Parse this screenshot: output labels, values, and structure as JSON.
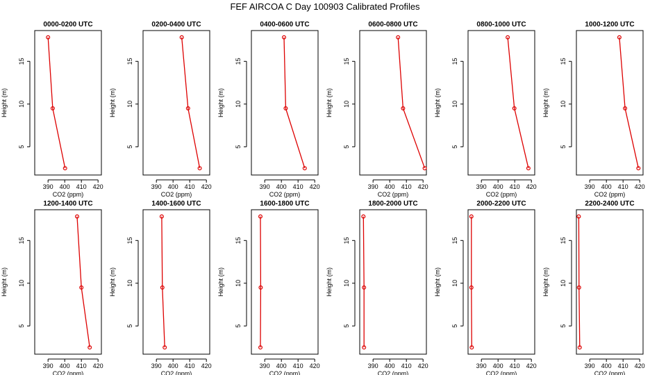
{
  "title": "FEF AIRCOA C  Day 100903  Calibrated Profiles",
  "colors": {
    "series": "#dd0000",
    "frame": "#000000"
  },
  "chart_data": {
    "type": "line",
    "xlabel": "CO2 (ppm)",
    "ylabel": "Height (m)",
    "xlim": [
      382,
      422
    ],
    "ylim": [
      1.7,
      18.6
    ],
    "xticks": [
      390,
      400,
      410,
      420
    ],
    "yticks": [
      5,
      10,
      15
    ],
    "heights": [
      17.8,
      9.5,
      2.5
    ],
    "panels": [
      {
        "title": "0000-0200 UTC",
        "co2": [
          390.0,
          392.8,
          400.2
        ]
      },
      {
        "title": "0200-0400 UTC",
        "co2": [
          405.2,
          409.0,
          416.0
        ]
      },
      {
        "title": "0400-0600 UTC",
        "co2": [
          401.6,
          402.6,
          414.0
        ]
      },
      {
        "title": "0600-0800 UTC",
        "co2": [
          405.0,
          408.0,
          421.0
        ]
      },
      {
        "title": "0800-1000 UTC",
        "co2": [
          405.8,
          409.8,
          418.2
        ]
      },
      {
        "title": "1000-1200 UTC",
        "co2": [
          407.8,
          411.2,
          419.2
        ]
      },
      {
        "title": "1200-1400 UTC",
        "co2": [
          407.4,
          410.0,
          415.0
        ]
      },
      {
        "title": "1400-1600 UTC",
        "co2": [
          393.2,
          393.6,
          395.0
        ]
      },
      {
        "title": "1600-1800 UTC",
        "co2": [
          387.4,
          387.6,
          387.4
        ]
      },
      {
        "title": "1800-2000 UTC",
        "co2": [
          384.2,
          384.6,
          384.6
        ]
      },
      {
        "title": "2000-2200 UTC",
        "co2": [
          384.0,
          384.0,
          384.2
        ]
      },
      {
        "title": "2200-2400 UTC",
        "co2": [
          383.4,
          383.6,
          384.0
        ]
      }
    ]
  }
}
